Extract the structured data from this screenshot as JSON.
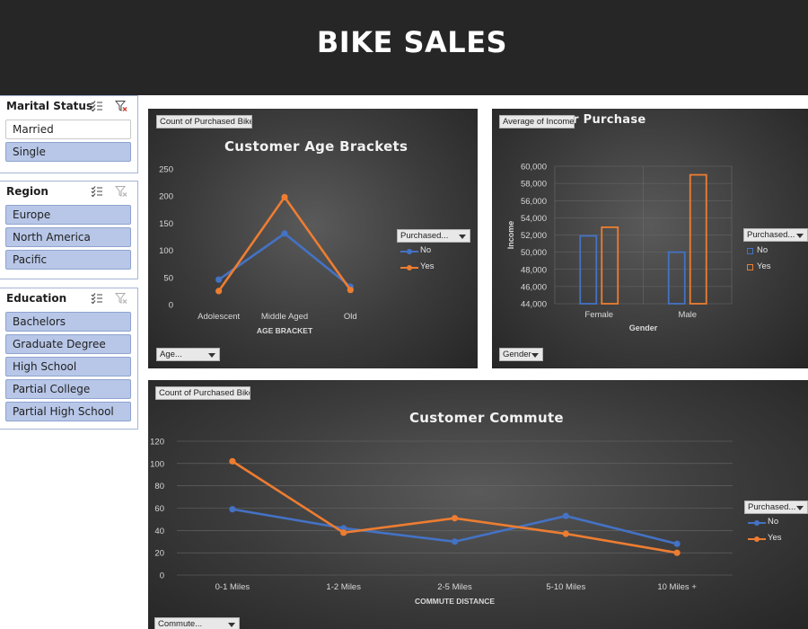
{
  "banner": {
    "title": "BIKE SALES"
  },
  "slicers": {
    "marital_status": {
      "title": "Marital Status",
      "items": [
        {
          "label": "Married",
          "selected": false
        },
        {
          "label": "Single",
          "selected": true
        }
      ]
    },
    "region": {
      "title": "Region",
      "items": [
        {
          "label": "Europe",
          "selected": true
        },
        {
          "label": "North America",
          "selected": true
        },
        {
          "label": "Pacific",
          "selected": true
        }
      ]
    },
    "education": {
      "title": "Education",
      "items": [
        {
          "label": "Bachelors",
          "selected": true
        },
        {
          "label": "Graduate Degree",
          "selected": true
        },
        {
          "label": "High School",
          "selected": true
        },
        {
          "label": "Partial College",
          "selected": true
        },
        {
          "label": "Partial High School",
          "selected": true
        }
      ]
    }
  },
  "colors": {
    "no": "#4472c4",
    "yes": "#ed7d31",
    "banner": "#262626",
    "slicer_selected": "#b8c7e8"
  },
  "charts": {
    "age": {
      "value_button": "Count of Purchased Bike",
      "axis_button": "Age...",
      "legend_button": "Purchased...",
      "legend_no": "No",
      "legend_yes": "Yes"
    },
    "income": {
      "value_button": "Average of Income",
      "title_tail": "er Purchase",
      "axis_button": "Gender",
      "legend_button": "Purchased...",
      "legend_no": "No",
      "legend_yes": "Yes"
    },
    "commute": {
      "value_button": "Count of Purchased Bike",
      "axis_button": "Commute...",
      "legend_button": "Purchased...",
      "legend_no": "No",
      "legend_yes": "Yes"
    }
  },
  "chart_data": [
    {
      "type": "line",
      "title": "Customer Age Brackets",
      "xlabel": "AGE BRACKET",
      "ylabel": "",
      "categories": [
        "Adolescent",
        "Middle Aged",
        "Old"
      ],
      "series": [
        {
          "name": "No",
          "values": [
            46,
            131,
            33
          ]
        },
        {
          "name": "Yes",
          "values": [
            25,
            198,
            27
          ]
        }
      ],
      "ylim": [
        0,
        250
      ],
      "yticks": [
        0,
        50,
        100,
        150,
        200,
        250
      ],
      "grid": false,
      "legend": "right"
    },
    {
      "type": "bar",
      "title": "",
      "xlabel": "Gender",
      "ylabel": "Income",
      "categories": [
        "Female",
        "Male"
      ],
      "series": [
        {
          "name": "No",
          "values": [
            51900,
            50000
          ]
        },
        {
          "name": "Yes",
          "values": [
            52900,
            59000
          ]
        }
      ],
      "ylim": [
        44000,
        60000
      ],
      "yticks": [
        "44,000",
        "46,000",
        "48,000",
        "50,000",
        "52,000",
        "54,000",
        "56,000",
        "58,000",
        "60,000"
      ],
      "grid": true,
      "legend": "right"
    },
    {
      "type": "line",
      "title": "Customer Commute",
      "xlabel": "COMMUTE DISTANCE",
      "ylabel": "",
      "categories": [
        "0-1 Miles",
        "1-2 Miles",
        "2-5 Miles",
        "5-10 Miles",
        "10 Miles +"
      ],
      "series": [
        {
          "name": "No",
          "values": [
            59,
            42,
            30,
            53,
            28
          ]
        },
        {
          "name": "Yes",
          "values": [
            102,
            38,
            51,
            37,
            20
          ]
        }
      ],
      "ylim": [
        0,
        120
      ],
      "yticks": [
        0,
        20,
        40,
        60,
        80,
        100,
        120
      ],
      "grid": true,
      "legend": "right"
    }
  ]
}
